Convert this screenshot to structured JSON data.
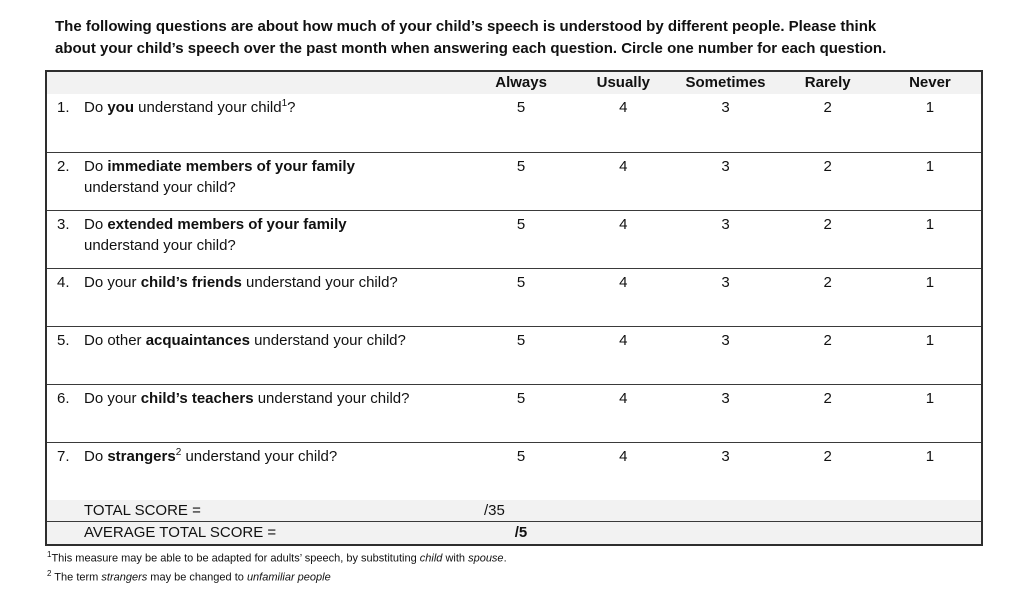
{
  "intro_parts": [
    {
      "text": "The following questions are about how much of your child’s speech is understood by different people. Please think"
    },
    {
      "br": true
    },
    {
      "text": "about your child’s speech over the past month when answering each question. Circle one number for each question."
    }
  ],
  "table": {
    "header": {
      "options": [
        "Always",
        "Usually",
        "Sometimes",
        "Rarely",
        "Never"
      ]
    },
    "rows": [
      {
        "number": "1.",
        "question_parts": [
          {
            "text": "Do "
          },
          {
            "text": "you",
            "bold": true
          },
          {
            "text": " understand your child"
          },
          {
            "text": "1",
            "sup": true
          },
          {
            "text": "?"
          }
        ],
        "ratings": [
          "5",
          "4",
          "3",
          "2",
          "1"
        ]
      },
      {
        "number": "2.",
        "question_parts": [
          {
            "text": "Do "
          },
          {
            "text": "immediate members of your family",
            "bold": true
          },
          {
            "br": true
          },
          {
            "text": "understand your child?"
          }
        ],
        "ratings": [
          "5",
          "4",
          "3",
          "2",
          "1"
        ]
      },
      {
        "number": "3.",
        "question_parts": [
          {
            "text": "Do "
          },
          {
            "text": "extended members of your family",
            "bold": true
          },
          {
            "br": true
          },
          {
            "text": "understand your child?"
          }
        ],
        "ratings": [
          "5",
          "4",
          "3",
          "2",
          "1"
        ]
      },
      {
        "number": "4.",
        "question_parts": [
          {
            "text": "Do your "
          },
          {
            "text": "child’s friends",
            "bold": true
          },
          {
            "text": " understand your child?"
          }
        ],
        "ratings": [
          "5",
          "4",
          "3",
          "2",
          "1"
        ]
      },
      {
        "number": "5.",
        "question_parts": [
          {
            "text": "Do other "
          },
          {
            "text": "acquaintances",
            "bold": true
          },
          {
            "text": " understand your child?"
          }
        ],
        "ratings": [
          "5",
          "4",
          "3",
          "2",
          "1"
        ]
      },
      {
        "number": "6.",
        "question_parts": [
          {
            "text": "Do your "
          },
          {
            "text": "child’s teachers",
            "bold": true
          },
          {
            "text": " understand your child?"
          }
        ],
        "ratings": [
          "5",
          "4",
          "3",
          "2",
          "1"
        ]
      },
      {
        "number": "7.",
        "question_parts": [
          {
            "text": "Do "
          },
          {
            "text": "strangers",
            "bold": true
          },
          {
            "text": "2",
            "sup": true
          },
          {
            "text": " understand your child?"
          }
        ],
        "ratings": [
          "5",
          "4",
          "3",
          "2",
          "1"
        ]
      }
    ],
    "total_row": {
      "label": "TOTAL SCORE =",
      "value": "/35"
    },
    "average_row": {
      "label": "AVERAGE TOTAL SCORE =",
      "value": "/5"
    }
  },
  "footnotes": [
    {
      "marker": "1",
      "parts": [
        {
          "text": "This measure may be able to be adapted for adults’ speech, by substituting "
        },
        {
          "text": "child",
          "italic": true
        },
        {
          "text": " with "
        },
        {
          "text": "spouse",
          "italic": true
        },
        {
          "text": "."
        }
      ]
    },
    {
      "marker": "2",
      "parts": [
        {
          "text": " The term "
        },
        {
          "text": "strangers",
          "italic": true
        },
        {
          "text": " may be changed to "
        },
        {
          "text": "unfamiliar people",
          "italic": true
        }
      ]
    }
  ],
  "colors": {
    "shaded_row_bg": "#f2f2f2",
    "border": "#3a3a3a",
    "text": "#111111"
  }
}
